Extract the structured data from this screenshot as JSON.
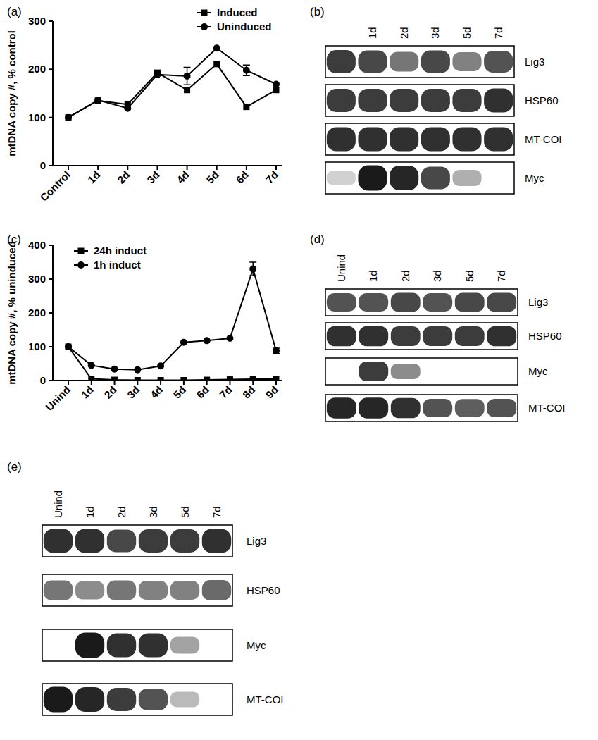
{
  "chart_data": [
    {
      "type": "line",
      "title": "(a)",
      "categories": [
        "Control",
        "1d",
        "2d",
        "3d",
        "4d",
        "5d",
        "6d",
        "7d"
      ],
      "y_label": "mtDNA copy #, % control",
      "ylim": [
        0,
        300
      ],
      "yticks": [
        0,
        100,
        200,
        300
      ],
      "legend": "top-right",
      "series": [
        {
          "name": "Induced",
          "color": "#000000",
          "marker": "square",
          "values": [
            100,
            135,
            127,
            193,
            157,
            211,
            122,
            157
          ],
          "errors": [
            null,
            null,
            null,
            null,
            null,
            null,
            null,
            null
          ]
        },
        {
          "name": "Uninduced",
          "color": "#000000",
          "marker": "circle",
          "values": [
            100,
            136,
            119,
            189,
            186,
            244,
            198,
            169
          ],
          "errors": [
            null,
            null,
            null,
            null,
            18,
            null,
            11,
            null
          ]
        }
      ]
    },
    {
      "type": "blot",
      "title": "(b)",
      "categories": [
        null,
        "1d",
        "2d",
        "3d",
        "5d",
        "7d"
      ],
      "series": [
        {
          "name": "Lig3",
          "color": "#1a1a1a",
          "values": [
            0.85,
            0.8,
            0.6,
            0.8,
            0.55,
            0.75
          ]
        },
        {
          "name": "HSP60",
          "color": "#1a1a1a",
          "values": [
            0.85,
            0.85,
            0.85,
            0.85,
            0.85,
            0.9
          ]
        },
        {
          "name": "MT-COI",
          "color": "#1a1a1a",
          "values": [
            0.9,
            0.9,
            0.9,
            0.9,
            0.9,
            0.9
          ]
        },
        {
          "name": "Myc",
          "color": "#1a1a1a",
          "values": [
            0.2,
            1,
            0.95,
            0.8,
            0.35,
            0
          ]
        }
      ]
    },
    {
      "type": "line",
      "title": "(c)",
      "categories": [
        "Unind",
        "1d",
        "2d",
        "3d",
        "4d",
        "5d",
        "6d",
        "7d",
        "8d",
        "9d"
      ],
      "y_label": "mtDNA copy #, % uninduced",
      "ylim": [
        0,
        400
      ],
      "yticks": [
        0,
        100,
        200,
        300,
        400
      ],
      "legend": "top-left",
      "series": [
        {
          "name": "24h induct",
          "color": "#000000",
          "marker": "square",
          "values": [
            100,
            5,
            2,
            1,
            1,
            1,
            2,
            3,
            4,
            4
          ],
          "errors": [
            null,
            null,
            null,
            null,
            null,
            null,
            null,
            null,
            null,
            null
          ]
        },
        {
          "name": "1h induct",
          "color": "#000000",
          "marker": "circle",
          "values": [
            100,
            45,
            34,
            32,
            43,
            113,
            118,
            125,
            330,
            88
          ],
          "errors": [
            null,
            null,
            null,
            null,
            null,
            null,
            null,
            null,
            20,
            8
          ]
        }
      ]
    },
    {
      "type": "blot",
      "title": "(d)",
      "categories": [
        "Unind",
        "1d",
        "2d",
        "3d",
        "5d",
        "7d"
      ],
      "series": [
        {
          "name": "Lig3",
          "color": "#1a1a1a",
          "values": [
            0.75,
            0.75,
            0.8,
            0.75,
            0.8,
            0.8
          ]
        },
        {
          "name": "HSP60",
          "color": "#1a1a1a",
          "values": [
            0.9,
            0.9,
            0.85,
            0.85,
            0.85,
            0.9
          ]
        },
        {
          "name": "Myc",
          "color": "#1a1a1a",
          "values": [
            0,
            0.85,
            0.5,
            0,
            0,
            0
          ]
        },
        {
          "name": "MT-COI",
          "color": "#1a1a1a",
          "values": [
            0.95,
            0.95,
            0.9,
            0.75,
            0.7,
            0.75
          ]
        }
      ]
    },
    {
      "type": "blot",
      "title": "(e)",
      "categories": [
        "Unind",
        "1d",
        "2d",
        "3d",
        "5d",
        "7d"
      ],
      "series": [
        {
          "name": "Lig3",
          "color": "#1a1a1a",
          "values": [
            0.9,
            0.9,
            0.8,
            0.85,
            0.85,
            0.9
          ]
        },
        {
          "name": "HSP60",
          "color": "#1a1a1a",
          "values": [
            0.6,
            0.5,
            0.6,
            0.55,
            0.55,
            0.65
          ]
        },
        {
          "name": "Myc",
          "color": "#1a1a1a",
          "values": [
            0,
            1,
            0.9,
            0.9,
            0.4,
            0
          ]
        },
        {
          "name": "MT-COI",
          "color": "#1a1a1a",
          "values": [
            1,
            0.95,
            0.85,
            0.75,
            0.3,
            0
          ]
        }
      ]
    }
  ]
}
